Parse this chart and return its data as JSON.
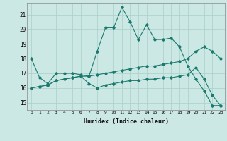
{
  "xlabel": "Humidex (Indice chaleur)",
  "x": [
    0,
    1,
    2,
    3,
    4,
    5,
    6,
    7,
    8,
    9,
    10,
    11,
    12,
    13,
    14,
    15,
    16,
    17,
    18,
    19,
    20,
    21,
    22,
    23
  ],
  "line1": [
    18.0,
    16.7,
    16.3,
    17.0,
    17.0,
    17.0,
    16.9,
    16.8,
    18.5,
    20.1,
    20.1,
    21.5,
    20.5,
    19.3,
    20.3,
    19.3,
    19.3,
    19.4,
    18.8,
    17.5,
    16.6,
    15.8,
    14.8,
    14.8
  ],
  "line2": [
    16.0,
    16.1,
    16.2,
    16.5,
    16.6,
    16.7,
    16.8,
    16.8,
    16.9,
    17.0,
    17.1,
    17.2,
    17.3,
    17.4,
    17.5,
    17.5,
    17.6,
    17.7,
    17.8,
    18.0,
    18.5,
    18.8,
    18.5,
    18.0
  ],
  "line3": [
    16.0,
    16.1,
    16.2,
    16.5,
    16.6,
    16.7,
    16.8,
    16.3,
    16.0,
    16.2,
    16.3,
    16.4,
    16.5,
    16.5,
    16.6,
    16.6,
    16.7,
    16.7,
    16.8,
    16.9,
    17.4,
    16.6,
    15.5,
    14.8
  ],
  "line_color": "#1a7a6e",
  "bg_color": "#cce8e4",
  "grid_color": "#aacfca",
  "ylim_min": 14.5,
  "ylim_max": 21.8,
  "yticks": [
    15,
    16,
    17,
    18,
    19,
    20,
    21
  ],
  "xticks": [
    0,
    1,
    2,
    3,
    4,
    5,
    6,
    7,
    8,
    9,
    10,
    11,
    12,
    13,
    14,
    15,
    16,
    17,
    18,
    19,
    20,
    21,
    22,
    23
  ]
}
